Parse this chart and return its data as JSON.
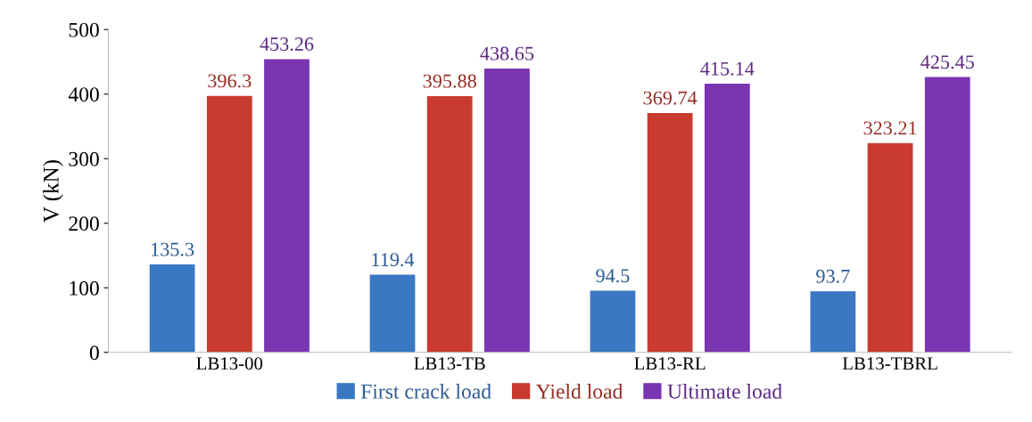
{
  "chart_data": {
    "type": "bar",
    "ylabel": "V (kN)",
    "categories": [
      "LB13-00",
      "LB13-TB",
      "LB13-RL",
      "LB13-TBRL"
    ],
    "series": [
      {
        "name": "First crack load",
        "color": "#3a78c4",
        "values": [
          135.3,
          119.4,
          94.5,
          93.7
        ]
      },
      {
        "name": "Yield load",
        "color": "#c93a30",
        "values": [
          396.3,
          395.88,
          369.74,
          323.21
        ]
      },
      {
        "name": "Ultimate load",
        "color": "#7a35b0",
        "values": [
          453.26,
          438.65,
          415.14,
          425.45
        ]
      }
    ],
    "ylim": [
      0,
      500
    ],
    "yticks": [
      0,
      100,
      200,
      300,
      400,
      500
    ],
    "data_labels": true,
    "legend": "bottom",
    "grid": false
  }
}
